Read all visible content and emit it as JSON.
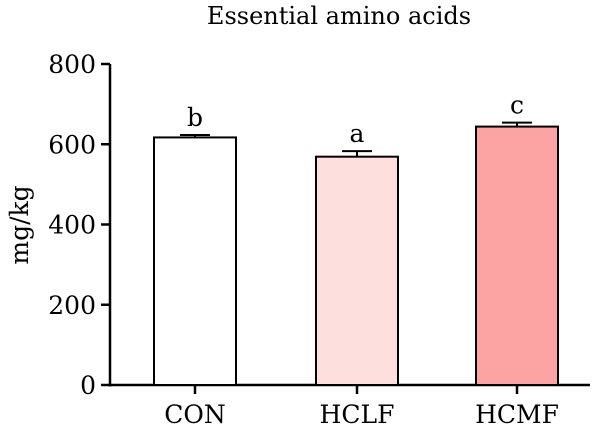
{
  "chart_data": {
    "type": "bar",
    "title": "Essential amino acids",
    "xlabel": "",
    "ylabel": "mg/kg",
    "ylim": [
      0,
      800
    ],
    "yticks": [
      "0",
      "200",
      "400",
      "600",
      "800"
    ],
    "categories": [
      "CON",
      "HCLF",
      "HCMF"
    ],
    "values": [
      617,
      569,
      644
    ],
    "errors": [
      6,
      14,
      10
    ],
    "significance_letters": [
      "b",
      "a",
      "c"
    ],
    "colors": [
      "#ffffff",
      "#fde0de",
      "#fca3a4"
    ],
    "edge_color": "#000000",
    "grid": false,
    "legend": "none"
  }
}
